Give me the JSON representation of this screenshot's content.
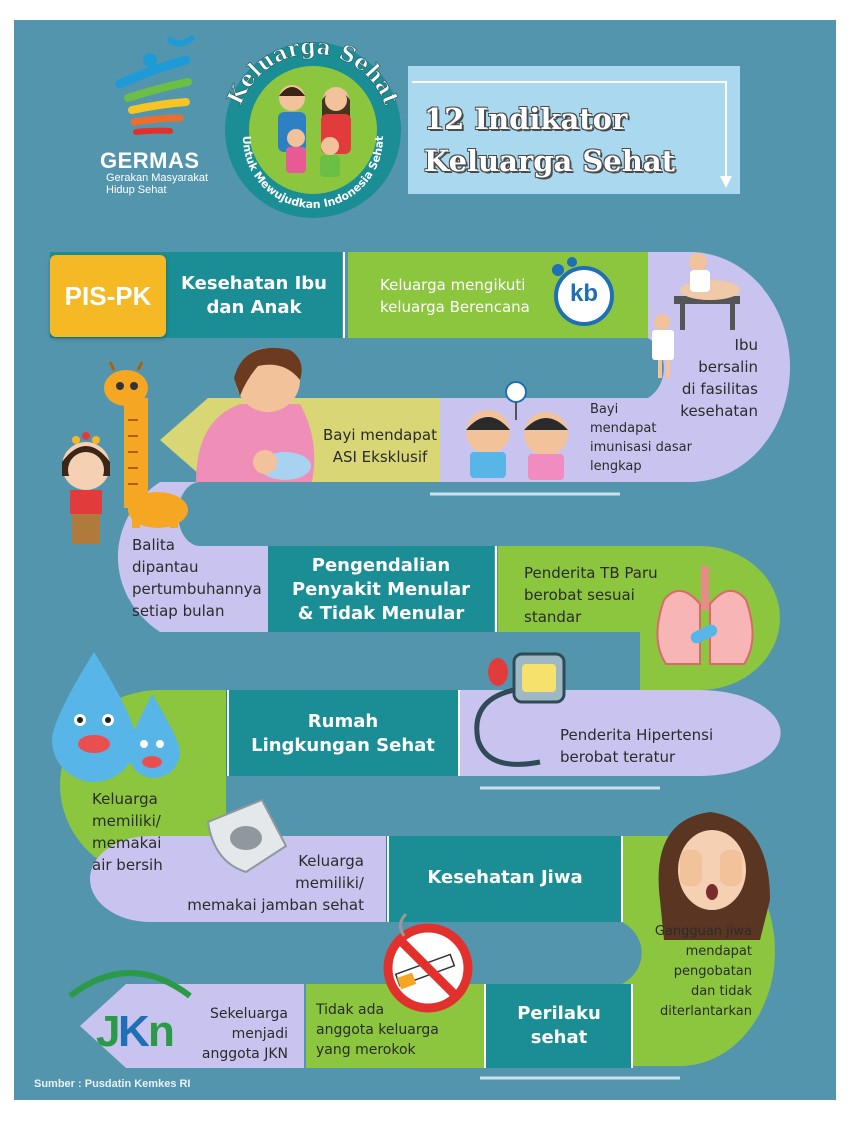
{
  "header": {
    "logo_word": "GERMAS",
    "logo_subtitle": "Gerakan Masyarakat Hidup Sehat",
    "badge_arc_top": "Keluarga Sehat",
    "badge_arc_bottom": "Untuk Mewujudkan Indonesia Sehat",
    "title_line1": "12 Indikator",
    "title_line2": "Keluarga Sehat"
  },
  "program_tag": "PIS-PK",
  "kb_logo_text": "kb",
  "jkn_logo_text": "JKN",
  "categories": {
    "ibu_anak_line1": "Kesehatan Ibu",
    "ibu_anak_line2": "dan Anak",
    "penyakit_line1": "Pengendalian",
    "penyakit_line2": "Penyakit Menular",
    "penyakit_line3": "& Tidak Menular",
    "rumah_line1": "Rumah",
    "rumah_line2": "Lingkungan Sehat",
    "jiwa": "Kesehatan Jiwa",
    "perilaku_line1": "Perilaku",
    "perilaku_line2": "sehat"
  },
  "indicators": {
    "kb_line1": "Keluarga mengikuti",
    "kb_line2": "keluarga Berencana",
    "bersalin_line1": "Ibu",
    "bersalin_line2": "bersalin",
    "bersalin_line3": "di fasilitas",
    "bersalin_line4": "kesehatan",
    "imunisasi_line1": "Bayi",
    "imunisasi_line2": "mendapat",
    "imunisasi_line3": "imunisasi dasar",
    "imunisasi_line4": "lengkap",
    "asi_line1": "Bayi mendapat",
    "asi_line2": "ASI Eksklusif",
    "balita_line1": "Balita",
    "balita_line2": "dipantau",
    "balita_line3": "pertumbuhannya",
    "balita_line4": "setiap bulan",
    "tb_line1": "Penderita TB Paru",
    "tb_line2": "berobat sesuai",
    "tb_line3": "standar",
    "hipertensi_line1": "Penderita Hipertensi",
    "hipertensi_line2": "berobat teratur",
    "air_line1": "Keluarga",
    "air_line2": "memiliki/",
    "air_line3": "memakai",
    "air_line4": "air bersih",
    "jamban_line1": "Keluarga",
    "jamban_line2": "memiliki/",
    "jamban_line3": "memakai jamban sehat",
    "jiwa_line1": "Gangguan jiwa",
    "jiwa_line2": "mendapat",
    "jiwa_line3": "pengobatan",
    "jiwa_line4": "dan tidak",
    "jiwa_line5": "diterlantarkan",
    "rokok_line1": "Tidak ada",
    "rokok_line2": "anggota keluarga",
    "rokok_line3": "yang merokok",
    "jkn_line1": "Sekeluarga",
    "jkn_line2": "menjadi",
    "jkn_line3": "anggota JKN"
  },
  "footer": {
    "source": "Sumber : Pusdatin Kemkes RI"
  },
  "colors": {
    "background": "#5495ae",
    "teal": "#1a8e94",
    "green": "#8cc63f",
    "lavender": "#c9c4ef",
    "yellow": "#d8d675",
    "title_box": "#a9d8ef",
    "pis_pk": "#f5b926"
  }
}
